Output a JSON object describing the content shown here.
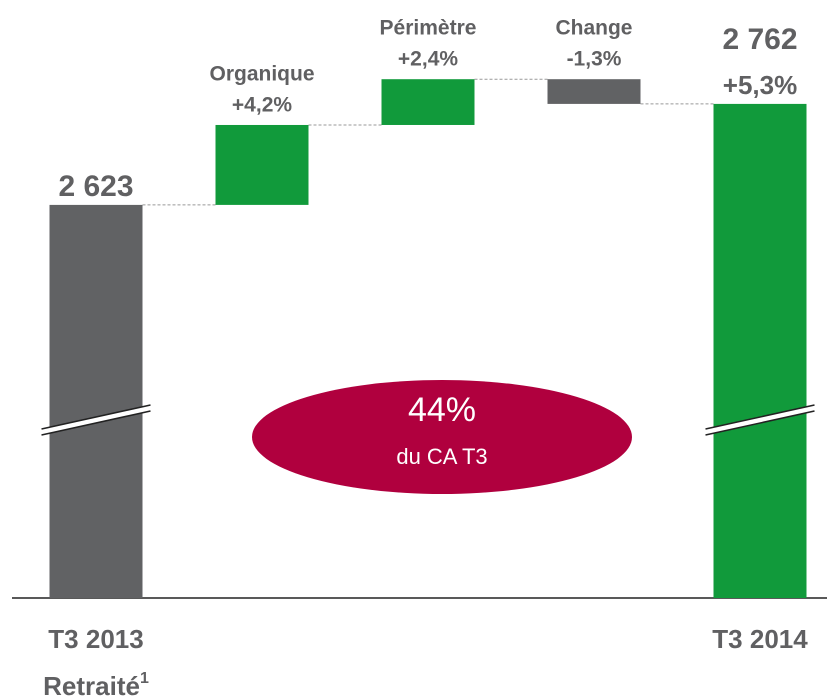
{
  "chart_data": {
    "type": "waterfall",
    "categories": [
      "T3 2013",
      "Organique",
      "Périmètre",
      "Change",
      "T3 2014"
    ],
    "first_category_note": "Retraité",
    "footnote_mark": "1",
    "values": [
      2623,
      110,
      63,
      -34,
      2762
    ],
    "value_labels": [
      "2 623",
      null,
      null,
      null,
      "2 762"
    ],
    "change_labels": [
      null,
      "+4,2%",
      "+2,4%",
      "-1,3%",
      "+5,3%"
    ],
    "totals": [
      true,
      false,
      false,
      false,
      true
    ],
    "colors": [
      "#616264",
      "#119a3b",
      "#119a3b",
      "#616264",
      "#119a3b"
    ],
    "ylim": [
      2082,
      2905
    ],
    "axis_break": true,
    "annotation": {
      "value": "44%",
      "text": "du CA T3",
      "color": "#b0003e"
    }
  }
}
